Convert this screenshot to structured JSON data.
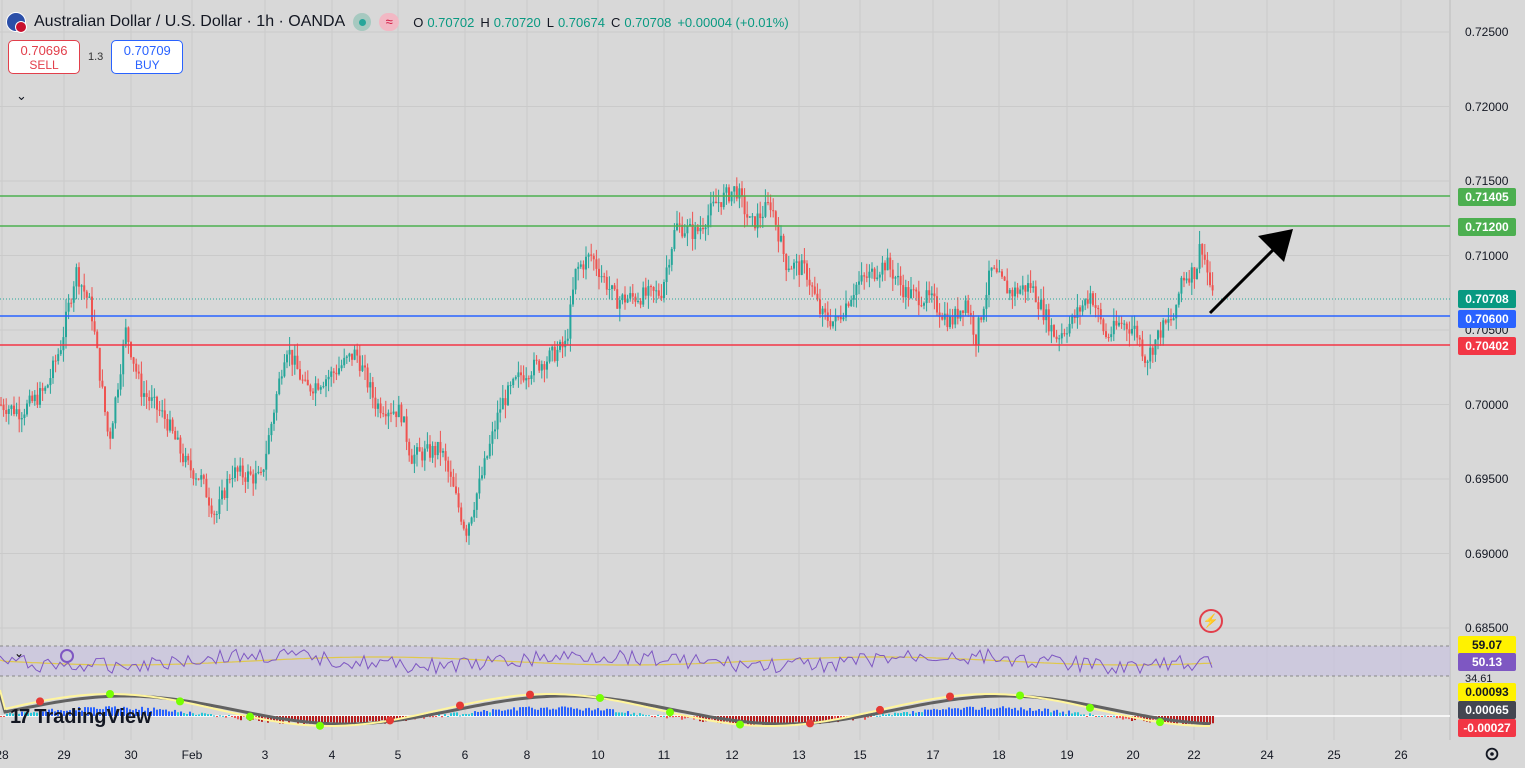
{
  "header": {
    "title": "Australian Dollar / U.S. Dollar · 1h · OANDA",
    "ohlc": [
      {
        "k": "O",
        "v": "0.70702"
      },
      {
        "k": "H",
        "v": "0.70720"
      },
      {
        "k": "L",
        "v": "0.70674"
      },
      {
        "k": "C",
        "v": "0.70708"
      }
    ],
    "change": "+0.00004 (+0.01%)"
  },
  "trade": {
    "sell_price": "0.70696",
    "sell_label": "SELL",
    "spread": "1.3",
    "buy_price": "0.70709",
    "buy_label": "BUY"
  },
  "price_axis": {
    "ticks": [
      "0.72500",
      "0.72000",
      "0.71500",
      "0.71000",
      "0.70500",
      "0.70000",
      "0.69500",
      "0.69000",
      "0.68500"
    ]
  },
  "price_tags": {
    "resist1": "0.71405",
    "resist2": "0.71200",
    "current": "0.70708",
    "support_blue": "0.70600",
    "support_red": "0.70402"
  },
  "rsi": {
    "upper": "59.07",
    "value": "50.13",
    "lower": "34.61"
  },
  "macd": {
    "v1": "0.00093",
    "v2": "0.00065",
    "v3": "-0.00027"
  },
  "xaxis": [
    "28",
    "29",
    "30",
    "Feb",
    "3",
    "4",
    "5",
    "6",
    "8",
    "10",
    "11",
    "12",
    "13",
    "15",
    "17",
    "18",
    "19",
    "20",
    "22",
    "24",
    "25",
    "26"
  ],
  "brand": "TradingView",
  "colors": {
    "up": "#26a69a",
    "down": "#ef5350",
    "green_line": "#4caf50",
    "blue_line": "#2962ff",
    "red_line": "#f23645",
    "rsi": "#7e57c2"
  }
}
